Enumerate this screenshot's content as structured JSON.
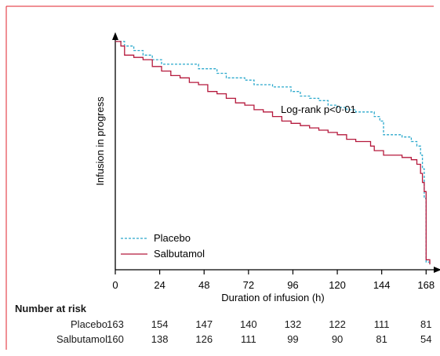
{
  "chart_data": {
    "type": "line",
    "title": "",
    "xlabel": "Duration of infusion (h)",
    "ylabel": "Infusion in progress",
    "xlim": [
      0,
      170
    ],
    "ylim": [
      0,
      1
    ],
    "x_ticks": [
      0,
      24,
      48,
      72,
      96,
      120,
      144,
      168
    ],
    "annotation": "Log-rank p<0·01",
    "legend_placement": "bottom-left",
    "series": [
      {
        "name": "Placebo",
        "style": "dashed",
        "color": "#2aa8cc",
        "x": [
          0,
          5,
          10,
          15,
          20,
          25,
          35,
          45,
          55,
          60,
          70,
          75,
          85,
          95,
          100,
          105,
          110,
          115,
          120,
          125,
          130,
          135,
          140,
          143,
          145,
          150,
          155,
          160,
          163,
          165,
          166,
          167,
          168,
          170
        ],
        "y": [
          0.99,
          0.97,
          0.95,
          0.93,
          0.91,
          0.89,
          0.89,
          0.87,
          0.85,
          0.83,
          0.82,
          0.8,
          0.79,
          0.77,
          0.75,
          0.74,
          0.73,
          0.71,
          0.7,
          0.69,
          0.68,
          0.68,
          0.66,
          0.64,
          0.58,
          0.58,
          0.57,
          0.55,
          0.53,
          0.49,
          0.43,
          0.3,
          0.02,
          0.01
        ]
      },
      {
        "name": "Salbutamol",
        "style": "solid",
        "color": "#b5193c",
        "x": [
          0,
          3,
          5,
          10,
          15,
          20,
          25,
          30,
          35,
          40,
          45,
          50,
          55,
          60,
          65,
          70,
          75,
          80,
          85,
          90,
          95,
          100,
          105,
          110,
          115,
          120,
          125,
          130,
          135,
          138,
          140,
          145,
          150,
          155,
          160,
          163,
          165,
          166,
          167,
          168,
          170
        ],
        "y": [
          0.99,
          0.97,
          0.93,
          0.92,
          0.91,
          0.88,
          0.86,
          0.84,
          0.83,
          0.81,
          0.8,
          0.77,
          0.76,
          0.74,
          0.72,
          0.71,
          0.69,
          0.68,
          0.66,
          0.64,
          0.63,
          0.62,
          0.61,
          0.6,
          0.59,
          0.58,
          0.56,
          0.55,
          0.55,
          0.53,
          0.51,
          0.49,
          0.49,
          0.48,
          0.47,
          0.45,
          0.41,
          0.37,
          0.33,
          0.03,
          0.01
        ]
      }
    ]
  },
  "risk_table": {
    "header": "Number at risk",
    "rows": [
      {
        "name": "Placebo",
        "values": [
          "163",
          "154",
          "147",
          "140",
          "132",
          "122",
          "111",
          "81"
        ]
      },
      {
        "name": "Salbutamol",
        "values": [
          "160",
          "138",
          "126",
          "111",
          "99",
          "90",
          "81",
          "54"
        ]
      }
    ]
  },
  "colors": {
    "frame": "#e0212b",
    "placebo": "#2aa8cc",
    "salbutamol": "#b5193c"
  }
}
